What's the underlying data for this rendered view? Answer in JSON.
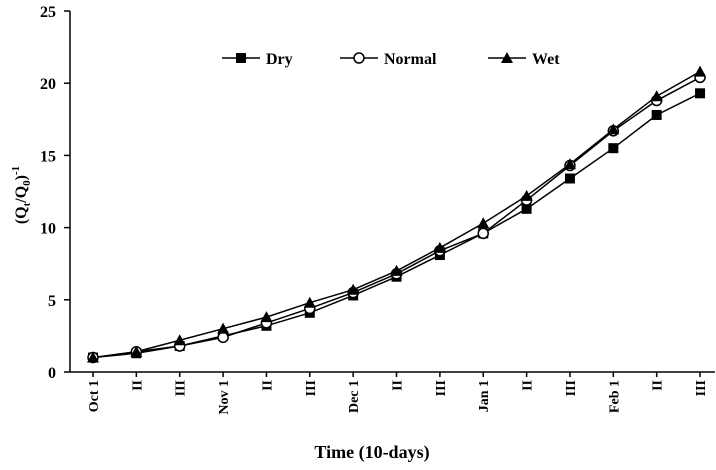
{
  "chart_data": {
    "type": "line",
    "y_label_parts": [
      "(Q",
      "t",
      "/Q",
      "0",
      ")",
      "-1"
    ],
    "x_label": "Time (10-days)",
    "categories": [
      "Oct 1",
      "II",
      "III",
      "Nov 1",
      "II",
      "III",
      "Dec 1",
      "II",
      "III",
      "Jan 1",
      "II",
      "III",
      "Feb 1",
      "II",
      "III"
    ],
    "series": [
      {
        "name": "Dry",
        "color": "#000000",
        "marker": "square",
        "values": [
          1.0,
          1.3,
          1.8,
          2.5,
          3.2,
          4.1,
          5.3,
          6.6,
          8.1,
          9.6,
          11.3,
          13.4,
          15.5,
          17.8,
          19.3
        ]
      },
      {
        "name": "Normal",
        "color": "#000000",
        "marker": "circle",
        "values": [
          1.0,
          1.4,
          1.8,
          2.4,
          3.4,
          4.4,
          5.5,
          6.8,
          8.4,
          9.6,
          11.9,
          14.3,
          16.7,
          18.8,
          20.4
        ]
      },
      {
        "name": "Wet",
        "color": "#000000",
        "marker": "triangle",
        "values": [
          1.0,
          1.4,
          2.2,
          3.0,
          3.8,
          4.8,
          5.7,
          7.0,
          8.6,
          10.3,
          12.2,
          14.4,
          16.8,
          19.1,
          20.8
        ]
      }
    ],
    "ylim": [
      0,
      25
    ],
    "yticks": [
      0,
      5,
      10,
      15,
      20,
      25
    ],
    "grid": false,
    "legend": "top"
  }
}
